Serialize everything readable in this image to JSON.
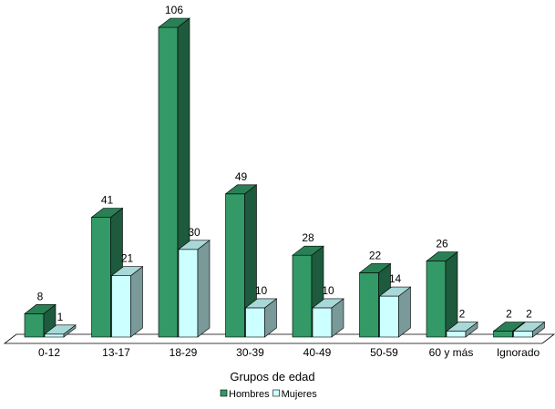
{
  "chart_data": {
    "type": "bar",
    "style": "3d-clustered",
    "categories": [
      "0-12",
      "13-17",
      "18-29",
      "30-39",
      "40-49",
      "50-59",
      "60 y más",
      "Ignorado"
    ],
    "series": [
      {
        "name": "Hombres",
        "values": [
          8,
          41,
          106,
          49,
          28,
          22,
          26,
          2
        ],
        "color": "#339966"
      },
      {
        "name": "Mujeres",
        "values": [
          1,
          21,
          30,
          10,
          10,
          14,
          2,
          2
        ],
        "color": "#ccffff"
      }
    ],
    "xlabel": "Grupos de edad",
    "ylabel": "",
    "ylim": [
      0,
      106
    ],
    "grid": false,
    "legend_position": "bottom-center",
    "data_labels": true
  }
}
